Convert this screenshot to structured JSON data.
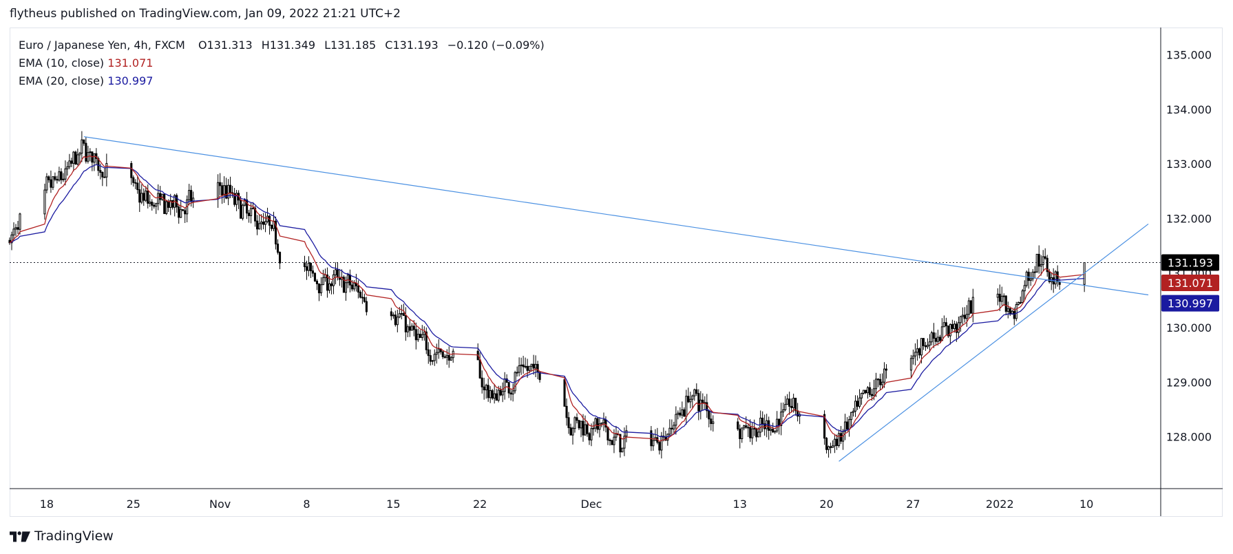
{
  "header": {
    "text": "flytheus published on TradingView.com, Jan 09, 2022 21:21 UTC+2"
  },
  "legend": {
    "symbol": "Euro / Japanese Yen, 4h, FXCM",
    "o_label": "O",
    "o": "131.313",
    "h_label": "H",
    "h": "131.349",
    "l_label": "L",
    "l": "131.185",
    "c_label": "C",
    "c": "131.193",
    "change": "−0.120 (−0.09%)",
    "ema10_label": "EMA (10, close)",
    "ema10_value": "131.071",
    "ema20_label": "EMA (20, close)",
    "ema20_value": "130.997"
  },
  "footer": {
    "brand": "TradingView"
  },
  "colors": {
    "candle": "#000000",
    "ema10": "#b22222",
    "ema20": "#1a1aa0",
    "trendline": "#4a90e2",
    "last_price_tag": "#000000"
  },
  "chart_data": {
    "type": "candlestick",
    "title": "Euro / Japanese Yen, 4h, FXCM",
    "ylim": [
      127.05,
      135.5
    ],
    "y_ticks": [
      "128.000",
      "129.000",
      "130.000",
      "131.000",
      "132.000",
      "133.000",
      "134.000",
      "135.000"
    ],
    "y_tick_values": [
      128,
      129,
      130,
      131,
      132,
      133,
      134,
      135
    ],
    "x_tick_labels": [
      "18",
      "25",
      "Nov",
      "8",
      "15",
      "22",
      "Dec",
      "13",
      "20",
      "27",
      "2022",
      "10"
    ],
    "x_tick_dates": [
      "2021-10-18",
      "2021-10-25",
      "2021-11-01",
      "2021-11-08",
      "2021-11-15",
      "2021-11-22",
      "2021-12-01",
      "2021-12-13",
      "2021-12-20",
      "2021-12-27",
      "2022-01-03",
      "2022-01-10"
    ],
    "price_path": [
      [
        "2021-10-15",
        131.6
      ],
      [
        "2021-10-17",
        132.4
      ],
      [
        "2021-10-19",
        132.7
      ],
      [
        "2021-10-21",
        133.3
      ],
      [
        "2021-10-22",
        133.0
      ],
      [
        "2021-10-24",
        132.6
      ],
      [
        "2021-10-26",
        132.3
      ],
      [
        "2021-10-28",
        132.2
      ],
      [
        "2021-10-30",
        132.3
      ],
      [
        "2021-11-01",
        132.6
      ],
      [
        "2021-11-03",
        132.1
      ],
      [
        "2021-11-05",
        131.8
      ],
      [
        "2021-11-07",
        131.0
      ],
      [
        "2021-11-09",
        130.9
      ],
      [
        "2021-11-11",
        130.8
      ],
      [
        "2021-11-13",
        130.5
      ],
      [
        "2021-11-15",
        130.3
      ],
      [
        "2021-11-17",
        129.7
      ],
      [
        "2021-11-19",
        129.5
      ],
      [
        "2021-11-21",
        129.3
      ],
      [
        "2021-11-23",
        128.7
      ],
      [
        "2021-11-25",
        129.2
      ],
      [
        "2021-11-27",
        129.2
      ],
      [
        "2021-11-29",
        128.3
      ],
      [
        "2021-12-01",
        128.2
      ],
      [
        "2021-12-03",
        127.9
      ],
      [
        "2021-12-05",
        127.8
      ],
      [
        "2021-12-07",
        128.1
      ],
      [
        "2021-12-09",
        128.8
      ],
      [
        "2021-12-11",
        128.3
      ],
      [
        "2021-12-13",
        128.2
      ],
      [
        "2021-12-15",
        128.1
      ],
      [
        "2021-12-17",
        128.6
      ],
      [
        "2021-12-19",
        128.1
      ],
      [
        "2021-12-20",
        127.7
      ],
      [
        "2021-12-22",
        128.3
      ],
      [
        "2021-12-24",
        129.0
      ],
      [
        "2021-12-26",
        129.4
      ],
      [
        "2021-12-28",
        129.8
      ],
      [
        "2021-12-30",
        130.0
      ],
      [
        "2022-01-01",
        130.4
      ],
      [
        "2022-01-03",
        130.7
      ],
      [
        "2022-01-04",
        130.2
      ],
      [
        "2022-01-05",
        130.9
      ],
      [
        "2022-01-06",
        131.3
      ],
      [
        "2022-01-07",
        131.0
      ],
      [
        "2022-01-08",
        131.0
      ],
      [
        "2022-01-09",
        131.19
      ]
    ],
    "last_price": 131.193,
    "ema10_last": 131.071,
    "ema20_last": 130.997,
    "last_price_label": "131.193",
    "ema10_label": "131.071",
    "ema20_label": "130.997",
    "trendlines": [
      {
        "from": [
          "2021-10-21",
          133.5
        ],
        "to": [
          "2022-01-15",
          130.6
        ]
      },
      {
        "from": [
          "2021-12-21",
          127.55
        ],
        "to": [
          "2022-01-15",
          131.9
        ]
      }
    ]
  }
}
